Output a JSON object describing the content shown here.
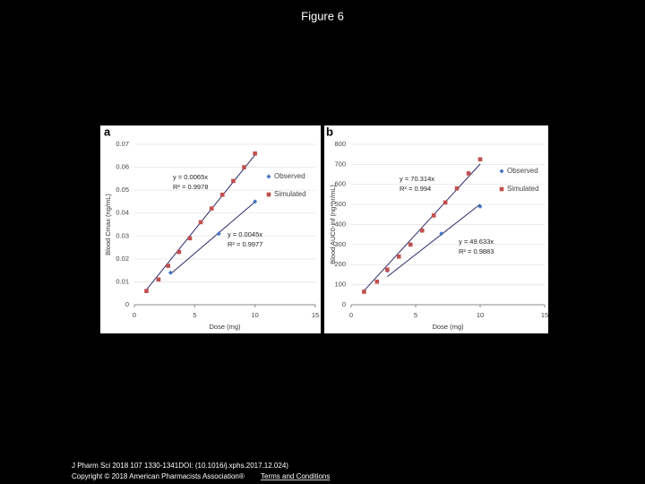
{
  "title": "Figure 6",
  "footer": {
    "citation": "J Pharm Sci 2018 107 1330-1341DOI: (10.1016/j.xphs.2017.12.024)",
    "copyright": "Copyright © 2018 American Pharmacists Association®",
    "link": "Terms and Conditions"
  },
  "chart_data": [
    {
      "type": "scatter",
      "panel": "a",
      "x_label": "Dose (mg)",
      "y_label": "Blood Cmax (ng/mL)",
      "xlim": [
        0,
        15
      ],
      "xticks": [
        0,
        5,
        10,
        15
      ],
      "ylim": [
        0,
        0.07
      ],
      "yticks": [
        0,
        0.01,
        0.02,
        0.03,
        0.04,
        0.05,
        0.06,
        0.07
      ],
      "series": [
        {
          "name": "Observed",
          "color": "#4472c4",
          "marker": "diamond",
          "x": [
            3,
            7,
            10
          ],
          "values": [
            0.014,
            0.031,
            0.045
          ],
          "equation": "y = 0.0045x",
          "r_squared": "R² = 0.9977"
        },
        {
          "name": "Simulated",
          "color": "#c0504d",
          "marker": "square",
          "x": [
            1,
            2,
            2.8,
            3.7,
            4.6,
            5.5,
            6.4,
            7.3,
            8.2,
            9.1,
            10
          ],
          "values": [
            0.006,
            0.011,
            0.017,
            0.023,
            0.029,
            0.036,
            0.042,
            0.048,
            0.054,
            0.06,
            0.066
          ],
          "equation": "y = 0.0065x",
          "r_squared": "R² = 0.9978"
        }
      ]
    },
    {
      "type": "scatter",
      "panel": "b",
      "x_label": "Dose (mg)",
      "y_label": "Blood AUC0-inf (ng*hr/mL)",
      "xlim": [
        0,
        15
      ],
      "xticks": [
        0,
        5,
        10,
        15
      ],
      "ylim": [
        0,
        800
      ],
      "yticks": [
        0,
        100,
        200,
        300,
        400,
        500,
        600,
        700,
        800
      ],
      "series": [
        {
          "name": "Observed",
          "color": "#4472c4",
          "marker": "diamond",
          "x": [
            2.8,
            7,
            10
          ],
          "values": [
            170,
            355,
            490
          ],
          "equation": "y = 49.633x",
          "r_squared": "R² = 0.9883"
        },
        {
          "name": "Simulated",
          "color": "#c0504d",
          "marker": "square",
          "x": [
            1,
            2,
            2.8,
            3.7,
            4.6,
            5.5,
            6.4,
            7.3,
            8.2,
            9.1,
            10
          ],
          "values": [
            65,
            115,
            175,
            240,
            300,
            370,
            445,
            510,
            580,
            655,
            725
          ],
          "equation": "y = 70.314x",
          "r_squared": "R² = 0.994"
        }
      ]
    }
  ]
}
